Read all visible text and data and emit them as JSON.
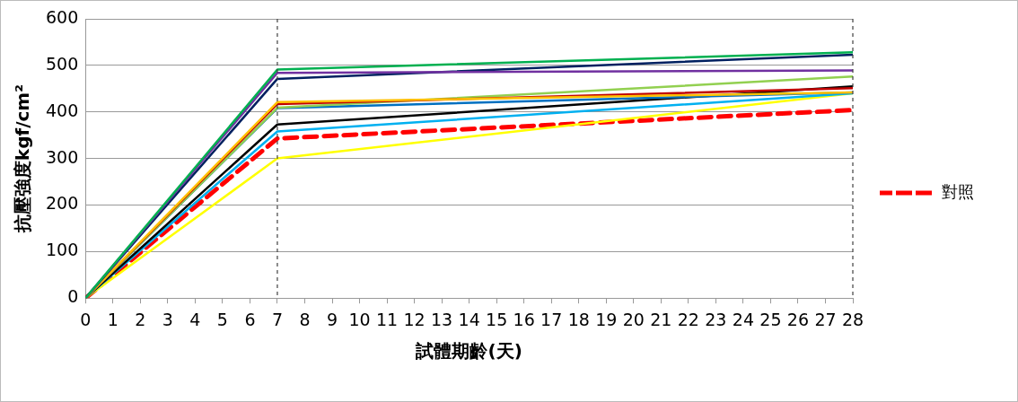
{
  "chart_data": {
    "type": "line",
    "xlabel": "試體期齡(天)",
    "ylabel": "抗壓強度kgf/cm²",
    "x": [
      0,
      7,
      28
    ],
    "xlim": [
      0,
      28
    ],
    "xticks": [
      0,
      1,
      2,
      3,
      4,
      5,
      6,
      7,
      8,
      9,
      10,
      11,
      12,
      13,
      14,
      15,
      16,
      17,
      18,
      19,
      20,
      21,
      22,
      23,
      24,
      25,
      26,
      27,
      28
    ],
    "ylim": [
      0,
      600
    ],
    "yticks": [
      0,
      100,
      200,
      300,
      400,
      500,
      600
    ],
    "grid": "y",
    "legend": "right",
    "marker": "none",
    "ref_lines": [
      {
        "axis": "x",
        "value": 7,
        "color": "#404040",
        "line_style": "dashed"
      },
      {
        "axis": "x",
        "value": 28,
        "color": "#404040",
        "line_style": "dashed"
      }
    ],
    "series": [
      {
        "color": "#00b050",
        "values": [
          0,
          491,
          528
        ]
      },
      {
        "color": "#7030a0",
        "values": [
          0,
          484,
          489
        ]
      },
      {
        "color": "#002060",
        "values": [
          0,
          471,
          523
        ]
      },
      {
        "color": "#ffc000",
        "values": [
          0,
          421,
          442
        ]
      },
      {
        "color": "#c00000",
        "values": [
          0,
          417,
          451
        ]
      },
      {
        "color": "#92d050",
        "values": [
          0,
          409,
          476
        ]
      },
      {
        "color": "#0070c0",
        "values": [
          0,
          408,
          442
        ]
      },
      {
        "color": "#000000",
        "values": [
          0,
          373,
          455
        ]
      },
      {
        "color": "#00b0f0",
        "values": [
          0,
          358,
          440
        ]
      },
      {
        "color": "#ffff00",
        "values": [
          0,
          300,
          440
        ]
      },
      {
        "name": "對照",
        "color": "#ff0000",
        "line_style": "dashed",
        "values": [
          0,
          343,
          404
        ]
      }
    ]
  }
}
